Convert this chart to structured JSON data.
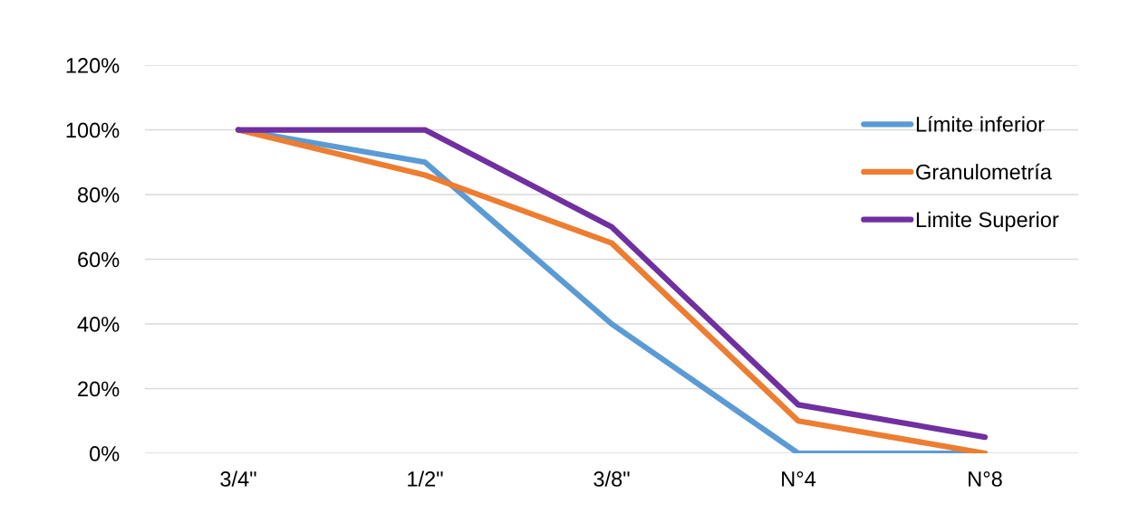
{
  "chart_data": {
    "type": "line",
    "categories": [
      "3/4\"",
      "1/2\"",
      "3/8\"",
      "N°4",
      "N°8"
    ],
    "series": [
      {
        "name": "Límite inferior",
        "color": "#5b9bd5",
        "values": [
          100,
          90,
          40,
          0,
          0
        ]
      },
      {
        "name": "Granulometría",
        "color": "#ed7d31",
        "values": [
          100,
          86,
          65,
          10,
          0
        ]
      },
      {
        "name": "Limite Superior",
        "color": "#7030a0",
        "values": [
          100,
          100,
          70,
          15,
          5
        ]
      }
    ],
    "ylim": [
      0,
      120
    ],
    "yticks": [
      {
        "value": 0,
        "label": "0%"
      },
      {
        "value": 20,
        "label": "20%"
      },
      {
        "value": 40,
        "label": "40%"
      },
      {
        "value": 60,
        "label": "60%"
      },
      {
        "value": 80,
        "label": "80%"
      },
      {
        "value": 100,
        "label": "100%"
      },
      {
        "value": 120,
        "label": "120%"
      }
    ],
    "grid": "y",
    "legend": "right",
    "marker": "none",
    "line_style": "solid"
  }
}
